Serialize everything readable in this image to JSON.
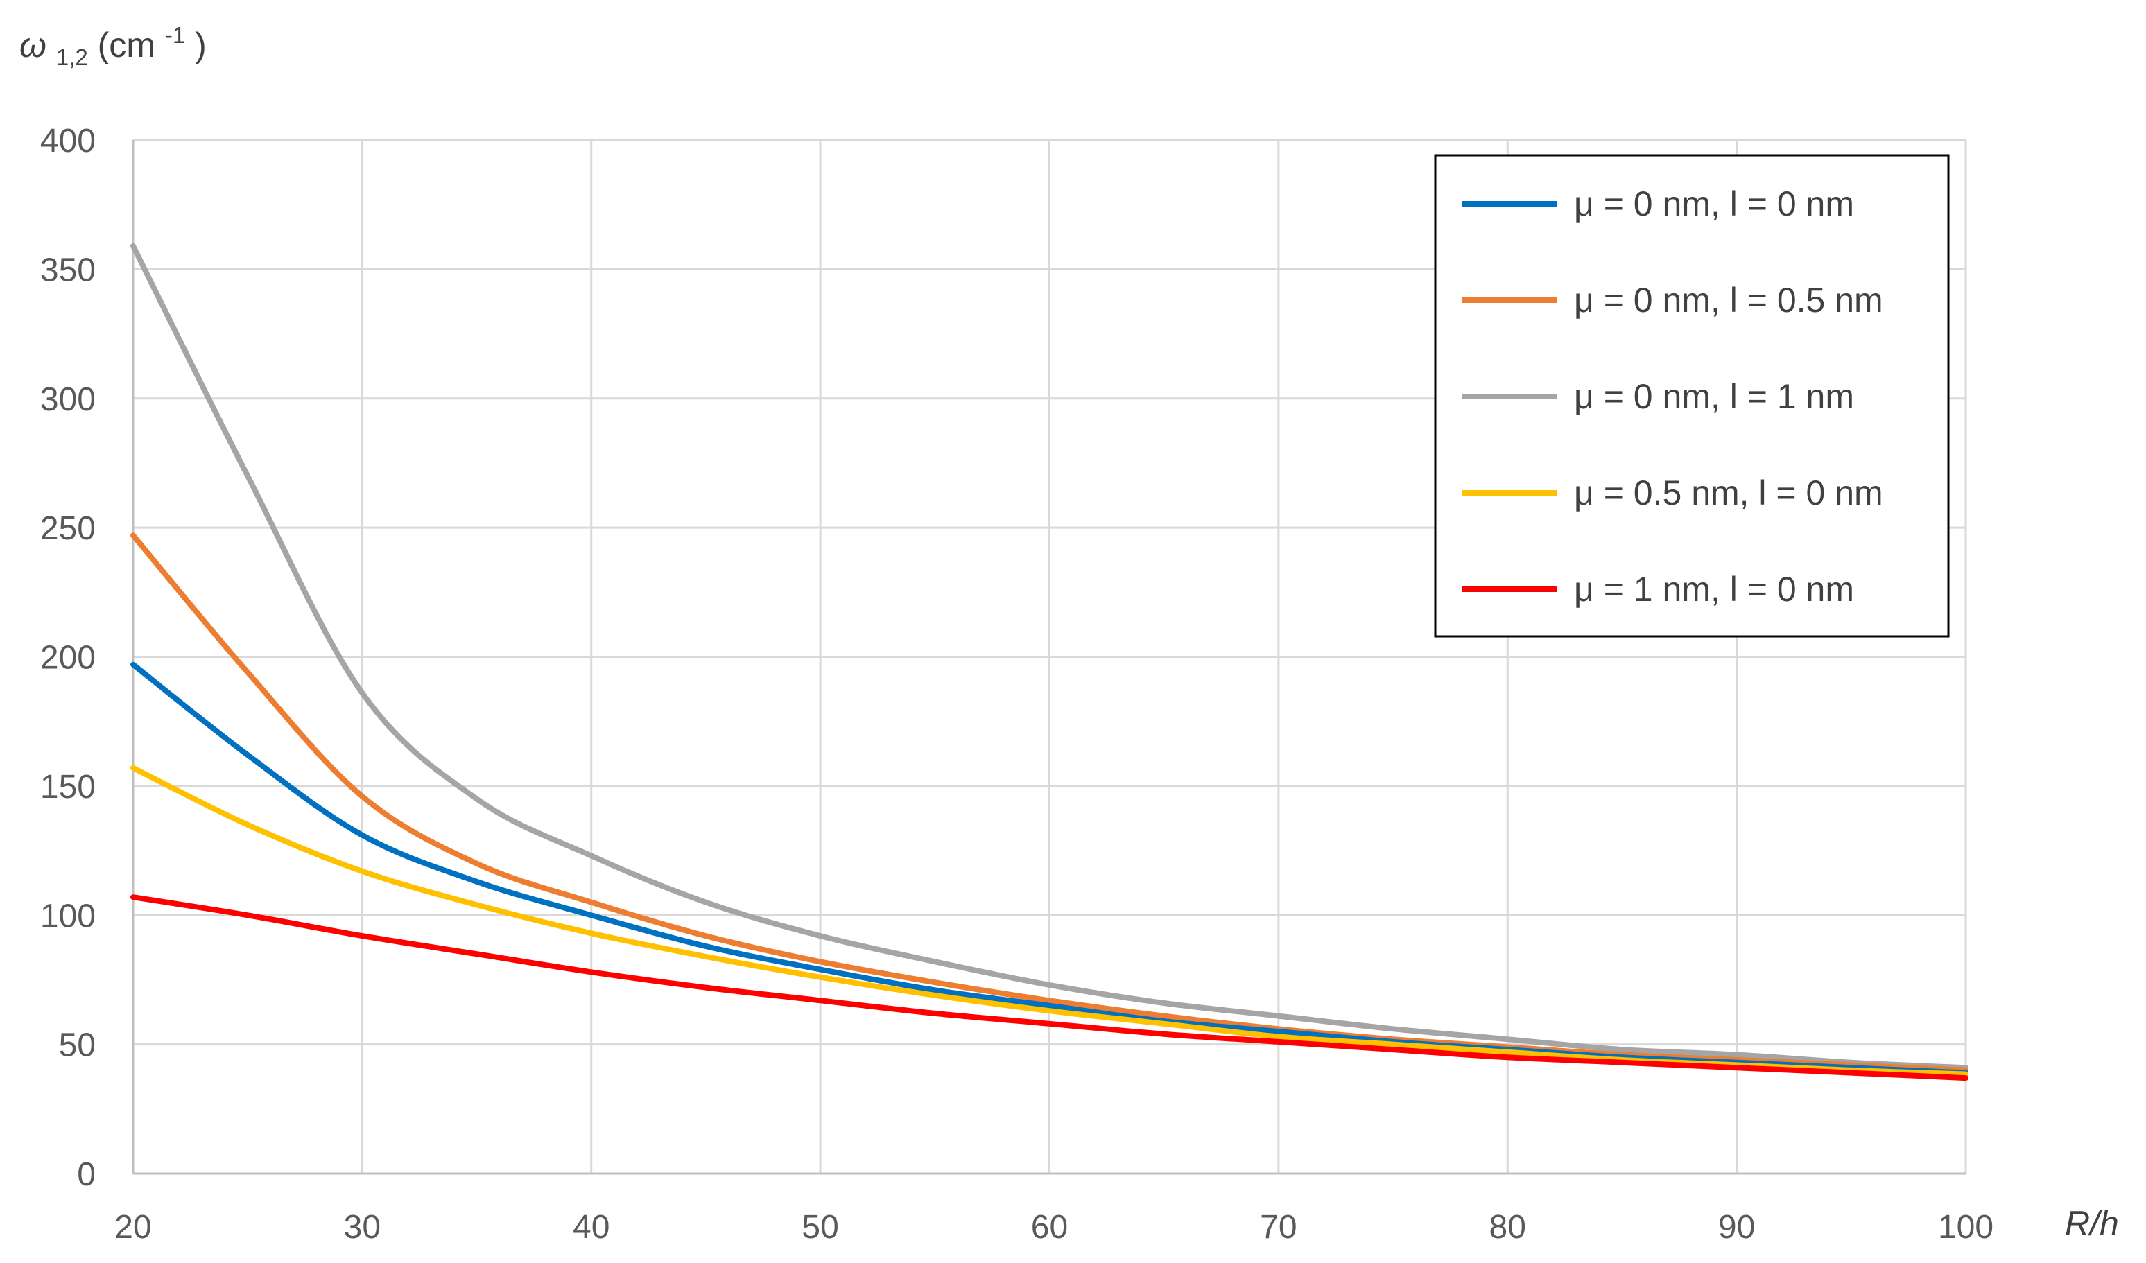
{
  "chart_data": {
    "type": "line",
    "xlabel": "R/h",
    "ylabel": {
      "symbol": "ω",
      "subscript": "1,2",
      "unit_prefix": " (cm",
      "unit_superscript": "-1",
      "unit_suffix": ")"
    },
    "xlim": [
      20,
      100
    ],
    "ylim": [
      0,
      400
    ],
    "x_ticks": [
      20,
      30,
      40,
      50,
      60,
      70,
      80,
      90,
      100
    ],
    "y_ticks": [
      0,
      50,
      100,
      150,
      200,
      250,
      300,
      350,
      400
    ],
    "grid": true,
    "legend_position": "top-right",
    "x": [
      20,
      25,
      30,
      35,
      40,
      45,
      50,
      55,
      60,
      65,
      70,
      75,
      80,
      85,
      90,
      95,
      100
    ],
    "series": [
      {
        "name": "μ = 0 nm, l = 0 nm",
        "color": "#0070C0",
        "values": [
          197,
          162,
          131,
          113,
          100,
          88,
          79,
          71,
          65,
          59,
          55,
          51,
          48,
          45,
          43,
          41,
          39
        ]
      },
      {
        "name": "μ = 0 nm, l = 0.5 nm",
        "color": "#ED7D31",
        "values": [
          247,
          194,
          146,
          120,
          105,
          92,
          82,
          74,
          67,
          61,
          56,
          52,
          49,
          46,
          44,
          42,
          40
        ]
      },
      {
        "name": "μ = 0 nm, l = 1 nm",
        "color": "#A5A5A5",
        "values": [
          359,
          270,
          186,
          145,
          123,
          105,
          92,
          82,
          73,
          66,
          61,
          56,
          52,
          48,
          46,
          43,
          41
        ]
      },
      {
        "name": "μ = 0.5 nm, l = 0 nm",
        "color": "#FFC000",
        "values": [
          157,
          135,
          117,
          104,
          93,
          84,
          76,
          69,
          63,
          58,
          53,
          50,
          47,
          44,
          42,
          40,
          38.5
        ]
      },
      {
        "name": "μ = 1 nm, l = 0 nm",
        "color": "#FF0000",
        "values": [
          107,
          100,
          92,
          85,
          78,
          72,
          67,
          62,
          58,
          54,
          51,
          48,
          45,
          43,
          41,
          39,
          37
        ]
      }
    ]
  }
}
